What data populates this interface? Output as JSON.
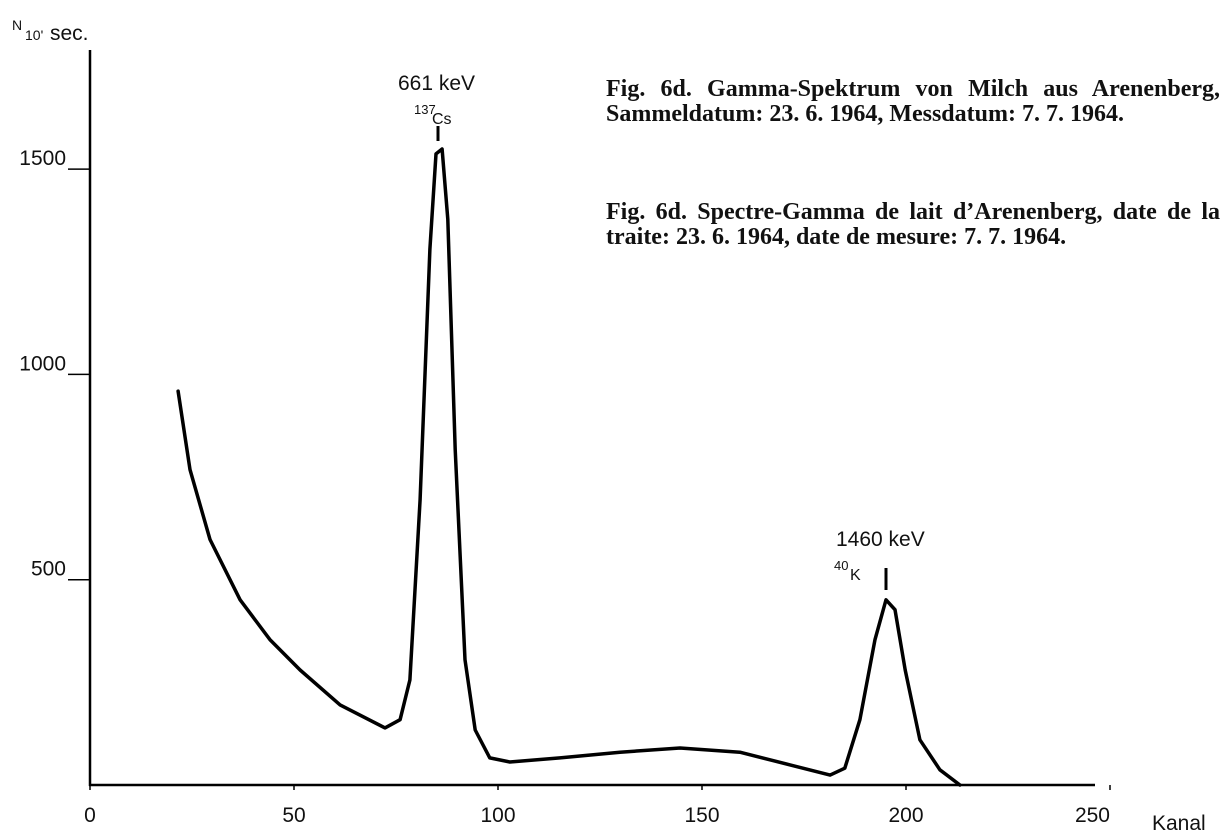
{
  "chart_data": {
    "type": "line",
    "ylabel": {
      "numerator": "N",
      "denominator": "10'",
      "unit": "sec."
    },
    "xlabel": "Kanal",
    "x": [
      21.6,
      24.5,
      29.4,
      36.8,
      44.1,
      51.5,
      61.3,
      72.3,
      76,
      78.4,
      80.9,
      83.3,
      84.8,
      86.3,
      87.7,
      89.5,
      91.9,
      94.4,
      98,
      102.9,
      115.2,
      129.9,
      144.6,
      159.3,
      171.6,
      181.4,
      185,
      188.7,
      192.4,
      195.1,
      197.3,
      199.8,
      203.4,
      208.3,
      213.2
    ],
    "values": [
      959,
      768,
      598,
      451,
      354,
      280,
      195,
      139,
      159,
      256,
      695,
      1305,
      1537,
      1549,
      1378,
      817,
      305,
      134,
      66,
      56,
      66,
      80,
      90,
      80,
      49,
      24,
      41,
      159,
      354,
      451,
      427,
      280,
      110,
      37,
      0
    ],
    "color": "#000000",
    "xlim": [
      0,
      250
    ],
    "ylim": [
      0,
      1790
    ],
    "xticks": [
      0,
      50,
      100,
      150,
      200,
      250
    ],
    "yticks": [
      500,
      1000,
      1500
    ],
    "annotations": [
      {
        "energy": "661 keV",
        "mass": "137",
        "isotope": "Cs"
      },
      {
        "energy": "1460 keV",
        "mass": "40",
        "isotope": "K"
      }
    ],
    "caption": [
      "Fig. 6d.  Gamma-Spektrum von Milch aus Arenenberg, Sammeldatum: 23. 6. 1964, Messdatum: 7. 7. 1964.",
      "Fig. 6d.  Spectre-Gamma de lait d’Arenenberg, date de la traite: 23. 6. 1964, date de mesure: 7. 7. 1964."
    ]
  }
}
